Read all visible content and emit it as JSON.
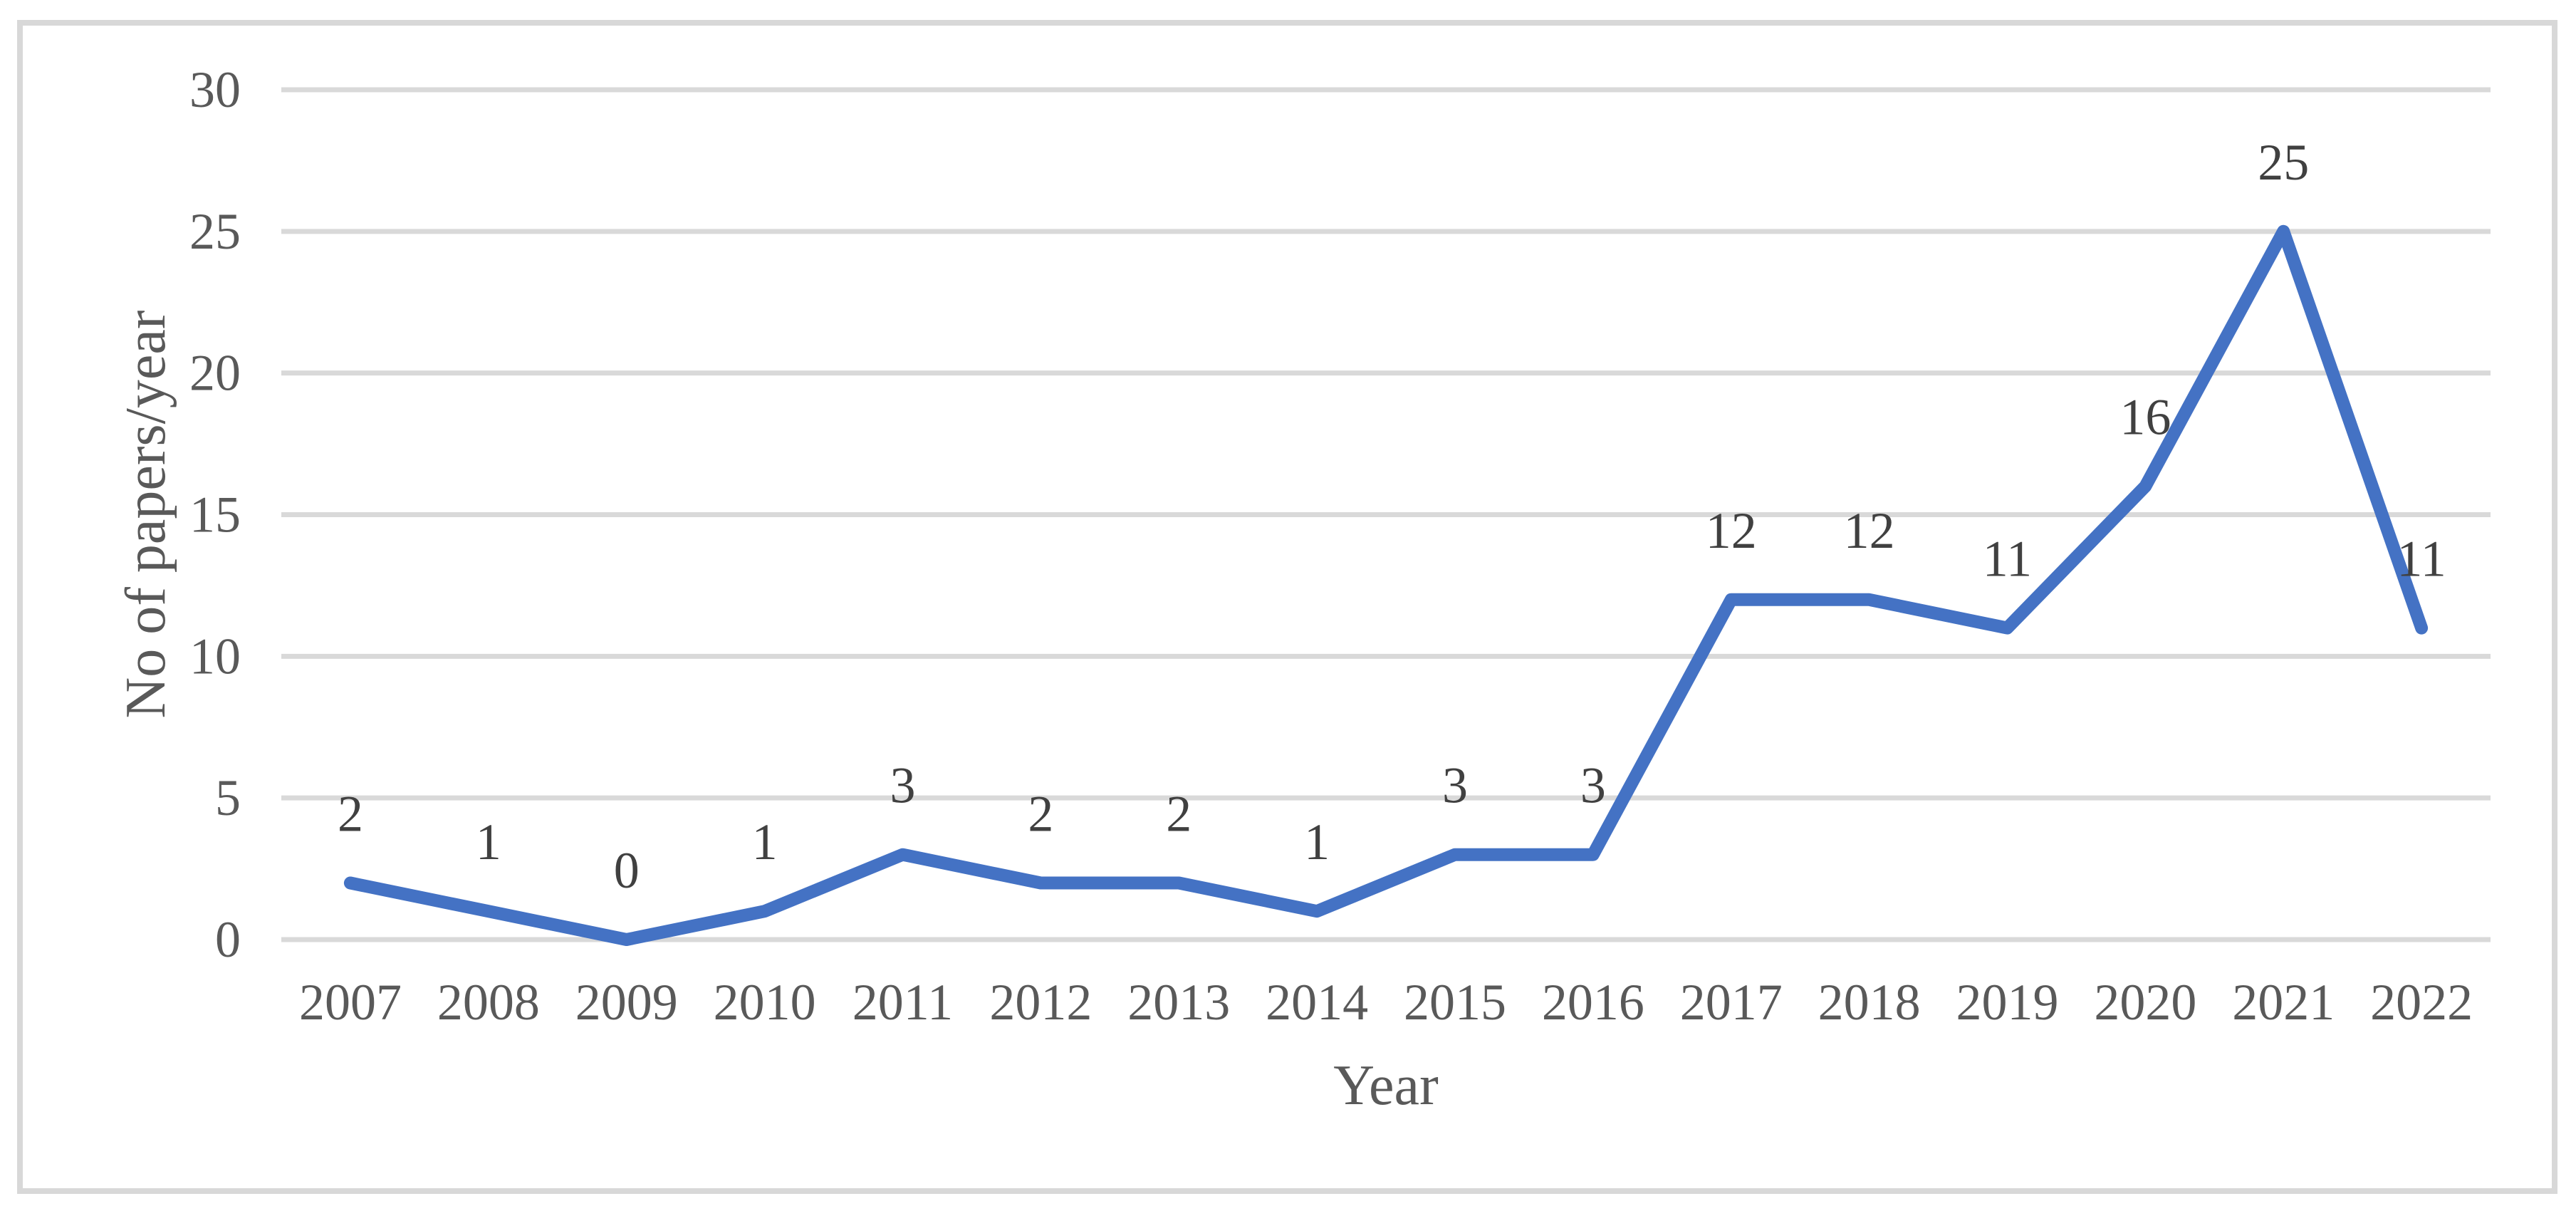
{
  "figure": {
    "background_color": "#ffffff",
    "border_color": "#d8d8d8"
  },
  "chart_data": {
    "type": "line",
    "title": "",
    "xlabel": "Year",
    "ylabel": "No of papers/year",
    "categories": [
      "2007",
      "2008",
      "2009",
      "2010",
      "2011",
      "2012",
      "2013",
      "2014",
      "2015",
      "2016",
      "2017",
      "2018",
      "2019",
      "2020",
      "2021",
      "2022"
    ],
    "series": [
      {
        "name": "No of papers/year",
        "values": [
          2,
          1,
          0,
          1,
          3,
          2,
          2,
          1,
          3,
          3,
          12,
          12,
          11,
          16,
          25,
          11
        ],
        "color": "#4472C4"
      }
    ],
    "data_labels": [
      "2",
      "1",
      "0",
      "1",
      "3",
      "2",
      "2",
      "1",
      "3",
      "3",
      "12",
      "12",
      "11",
      "16",
      "25",
      "11"
    ],
    "data_labels_visible": true,
    "ylim": [
      0,
      30
    ],
    "yticks": [
      0,
      5,
      10,
      15,
      20,
      25,
      30
    ],
    "grid": "horizontal",
    "gridline_color": "#d9d9d9",
    "legend": "none",
    "tick_label_color": "#595959",
    "data_label_color": "#404040",
    "axis_title_color": "#595959"
  }
}
